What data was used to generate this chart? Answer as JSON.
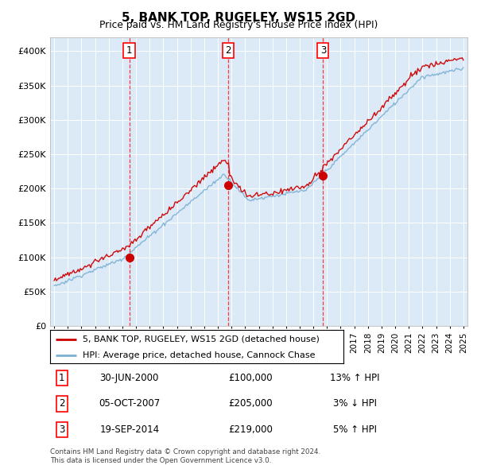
{
  "title": "5, BANK TOP, RUGELEY, WS15 2GD",
  "subtitle": "Price paid vs. HM Land Registry's House Price Index (HPI)",
  "legend_line1": "5, BANK TOP, RUGELEY, WS15 2GD (detached house)",
  "legend_line2": "HPI: Average price, detached house, Cannock Chase",
  "footer1": "Contains HM Land Registry data © Crown copyright and database right 2024.",
  "footer2": "This data is licensed under the Open Government Licence v3.0.",
  "sale_points": [
    {
      "label": "1",
      "date": "30-JUN-2000",
      "price": 100000,
      "hpi_rel": "13% ↑ HPI",
      "x_year": 2000.5
    },
    {
      "label": "2",
      "date": "05-OCT-2007",
      "price": 205000,
      "hpi_rel": "3% ↓ HPI",
      "x_year": 2007.75
    },
    {
      "label": "3",
      "date": "19-SEP-2014",
      "price": 219000,
      "hpi_rel": "5% ↑ HPI",
      "x_year": 2014.72
    }
  ],
  "plot_bg_color": "#dce9f7",
  "line_color_red": "#cc0000",
  "line_color_blue": "#7ab0d4",
  "ylim": [
    0,
    420000
  ],
  "xlim_start": 1994.7,
  "xlim_end": 2025.3
}
